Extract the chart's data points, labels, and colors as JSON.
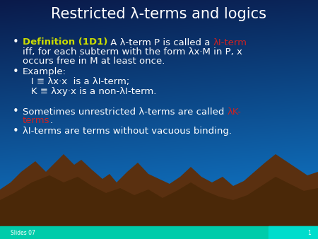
{
  "title": "Restricted λ-terms and logics",
  "bg_color_top": "#0a1a4a",
  "bg_color_bottom": "#1060b0",
  "bg_color_right": "#1878c0",
  "title_color": "#ffffff",
  "title_fontsize": 15,
  "white": "#ffffff",
  "yellow": "#ccdd00",
  "red": "#cc2222",
  "teal": "#00ddcc",
  "mountain_color": "#5a3510",
  "slide_number": "1",
  "footer": "Slides 07",
  "bullet_fs": 9.5,
  "footer_fs": 5.5
}
